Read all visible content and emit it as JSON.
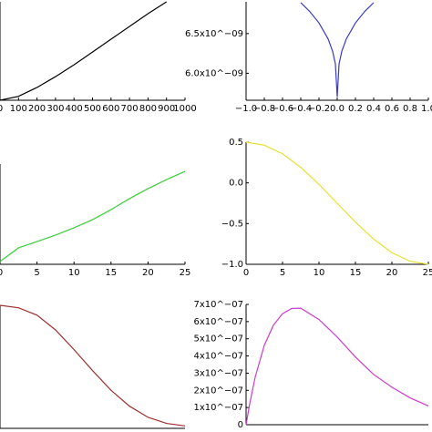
{
  "chart_data": [
    {
      "type": "line",
      "color": "#000000",
      "x": [
        0,
        100,
        200,
        300,
        400,
        500,
        600,
        700,
        800,
        900
      ],
      "values": [
        0,
        0.04,
        0.13,
        0.24,
        0.36,
        0.49,
        0.62,
        0.75,
        0.88,
        1.0
      ],
      "xlim": [
        0,
        1000
      ],
      "ylim": [
        0,
        1
      ],
      "xticks": [
        0,
        100,
        200,
        300,
        400,
        500,
        600,
        700,
        800,
        900,
        1000
      ]
    },
    {
      "type": "line",
      "color": "#3a3ac8",
      "x": [
        -0.4,
        -0.3,
        -0.2,
        -0.1,
        -0.05,
        -0.02,
        0,
        0.02,
        0.05,
        0.1,
        0.2,
        0.3,
        0.4
      ],
      "values": [
        6.89e-09,
        6.776e-09,
        6.634e-09,
        6.433e-09,
        6.275e-09,
        6.118e-09,
        5.7e-09,
        6.118e-09,
        6.275e-09,
        6.433e-09,
        6.634e-09,
        6.776e-09,
        6.89e-09
      ],
      "xlim": [
        -1,
        1
      ],
      "ylim": [
        5.66e-09,
        6.9e-09
      ],
      "xticks": [
        {
          "value": -1,
          "label": "−1.0"
        },
        {
          "value": -0.8,
          "label": "−0.8"
        },
        {
          "value": -0.6,
          "label": "−0.6"
        },
        {
          "value": -0.4,
          "label": "−0.4"
        },
        {
          "value": -0.2,
          "label": "−0.2"
        },
        {
          "value": 0,
          "label": "0.0"
        },
        0.2,
        0.4,
        0.6,
        0.8,
        {
          "value": 1,
          "label": "1.0"
        }
      ],
      "yticks": [
        {
          "value": 6e-09,
          "label": "6.0x10^−09"
        },
        {
          "value": 6.5e-09,
          "label": "6.5x10^−09"
        }
      ]
    },
    {
      "type": "line",
      "color": "#3ccc3c",
      "x": [
        0,
        2.5,
        5,
        7.5,
        10,
        12.5,
        15,
        17.5,
        20,
        22.5,
        25
      ],
      "values": [
        0.027,
        0.164,
        0.227,
        0.291,
        0.364,
        0.445,
        0.545,
        0.655,
        0.755,
        0.845,
        0.927
      ],
      "xlim": [
        0,
        25
      ],
      "ylim": [
        0,
        1
      ],
      "xticks": [
        0,
        5,
        10,
        15,
        20,
        25
      ]
    },
    {
      "type": "line",
      "color": "#e6e030",
      "x": [
        0,
        2.5,
        5,
        7.5,
        10,
        12.5,
        15,
        17.5,
        20,
        22.5,
        25
      ],
      "values": [
        0.5,
        0.463,
        0.357,
        0.191,
        -0.018,
        -0.25,
        -0.482,
        -0.691,
        -0.857,
        -0.963,
        -1.0
      ],
      "xlim": [
        0,
        25
      ],
      "ylim": [
        -1,
        0.5
      ],
      "xticks": [
        0,
        5,
        10,
        15,
        20,
        25
      ],
      "yticks": [
        {
          "value": -1,
          "label": "−1.0"
        },
        {
          "value": -0.5,
          "label": "−0.5"
        },
        {
          "value": 0,
          "label": "0.0"
        },
        0.5
      ]
    },
    {
      "type": "line",
      "color": "#a03030",
      "x": [
        0,
        0.1,
        0.2,
        0.3,
        0.4,
        0.5,
        0.6,
        0.7,
        0.8,
        0.9,
        1.0
      ],
      "values": [
        1,
        0.98,
        0.92,
        0.8,
        0.64,
        0.47,
        0.31,
        0.18,
        0.09,
        0.04,
        0.02
      ],
      "xlim": [
        0,
        1
      ],
      "ylim": [
        0,
        1
      ]
    },
    {
      "type": "line",
      "color": "#cc3ccc",
      "x": [
        0,
        0.02,
        0.05,
        0.1,
        0.15,
        0.2,
        0.25,
        0.3,
        0.4,
        0.5,
        0.6,
        0.7,
        0.8,
        0.9,
        1.0
      ],
      "values": [
        0,
        1.22e-07,
        2.77e-07,
        4.62e-07,
        5.79e-07,
        6.46e-07,
        6.76e-07,
        6.78e-07,
        6.12e-07,
        5.1e-07,
        3.94e-07,
        2.92e-07,
        2.18e-07,
        1.56e-07,
        1.09e-07
      ],
      "xlim": [
        0,
        1
      ],
      "ylim": [
        0,
        7e-07
      ],
      "yticks": [
        0,
        {
          "value": 1e-07,
          "label": "1x10^−07"
        },
        {
          "value": 2e-07,
          "label": "2x10^−07"
        },
        {
          "value": 3e-07,
          "label": "3x10^−07"
        },
        {
          "value": 4e-07,
          "label": "4x10^−07"
        },
        {
          "value": 5e-07,
          "label": "5x10^−07"
        },
        {
          "value": 6e-07,
          "label": "6x10^−07"
        },
        {
          "value": 7e-07,
          "label": "7x10^−07"
        }
      ]
    }
  ]
}
